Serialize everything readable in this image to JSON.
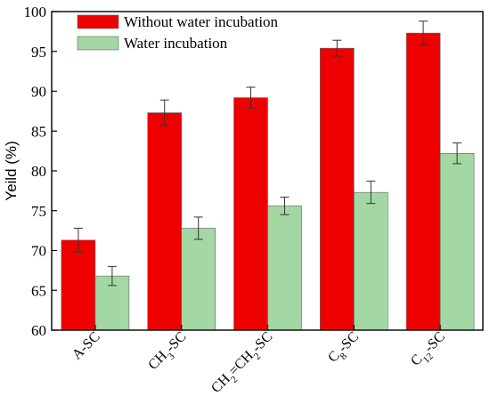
{
  "chart_data": {
    "type": "bar",
    "ylabel": "Yeild (%)",
    "xlabel": "",
    "ylim": [
      60,
      100
    ],
    "yticks": [
      60,
      65,
      70,
      75,
      80,
      85,
      90,
      95,
      100
    ],
    "categories": [
      {
        "base": "A-SC",
        "parts": [
          [
            "A-SC",
            ""
          ]
        ]
      },
      {
        "base": "CH3-SC",
        "parts": [
          [
            "CH",
            ""
          ],
          [
            "3",
            "sub"
          ],
          [
            "-SC",
            ""
          ]
        ]
      },
      {
        "base": "CH2=CH2-SC",
        "parts": [
          [
            "CH",
            ""
          ],
          [
            "2",
            "sub"
          ],
          [
            "=CH",
            ""
          ],
          [
            "2",
            "sub"
          ],
          [
            "-SC",
            ""
          ]
        ]
      },
      {
        "base": "C8-SC",
        "parts": [
          [
            "C",
            ""
          ],
          [
            "8",
            "sub"
          ],
          [
            "-SC",
            ""
          ]
        ]
      },
      {
        "base": "C12-SC",
        "parts": [
          [
            "C",
            ""
          ],
          [
            "12",
            "sub"
          ],
          [
            "-SC",
            ""
          ]
        ]
      }
    ],
    "series": [
      {
        "name": "Without water incubation",
        "color": "#ee0000",
        "values": [
          71.3,
          87.3,
          89.2,
          95.4,
          97.3
        ],
        "errors": [
          1.5,
          1.6,
          1.3,
          1.0,
          1.5
        ]
      },
      {
        "name": "Water incubation",
        "color": "#a3d7a3",
        "values": [
          66.8,
          72.8,
          75.6,
          77.3,
          82.2
        ],
        "errors": [
          1.2,
          1.4,
          1.1,
          1.4,
          1.3
        ]
      }
    ],
    "legend_position": "top-left",
    "grid": false
  }
}
